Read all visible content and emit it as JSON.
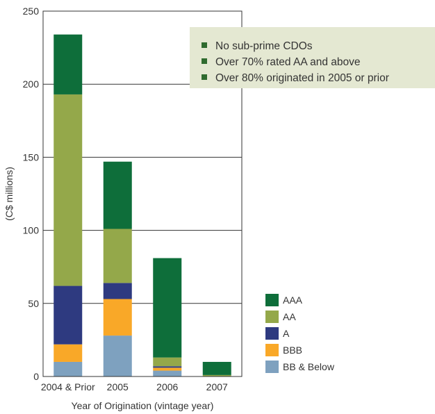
{
  "chart_data": {
    "type": "bar",
    "stacked": true,
    "categories": [
      "2004 & Prior",
      "2005",
      "2006",
      "2007"
    ],
    "series": [
      {
        "name": "BB & Below",
        "color": "#7ea1bf",
        "values": [
          10,
          28,
          4,
          0
        ]
      },
      {
        "name": "BBB",
        "color": "#f9a828",
        "values": [
          12,
          25,
          2,
          0
        ]
      },
      {
        "name": "A",
        "color": "#2e3a80",
        "values": [
          40,
          11,
          1,
          0
        ]
      },
      {
        "name": "AA",
        "color": "#94a84a",
        "values": [
          131,
          37,
          6,
          1
        ]
      },
      {
        "name": "AAA",
        "color": "#0e6e3a",
        "values": [
          41,
          46,
          68,
          9
        ]
      }
    ],
    "title": "",
    "xlabel": "Year of Origination (vintage year)",
    "ylabel": "(C$ millions)",
    "ylim": [
      0,
      250
    ],
    "yticks": [
      0,
      50,
      100,
      150,
      200,
      250
    ],
    "grid": true,
    "legend_position": "bottom-right",
    "legend_order": [
      "AAA",
      "AA",
      "A",
      "BBB",
      "BB & Below"
    ]
  },
  "callout": {
    "background": "#e4e8d2",
    "bullet_color": "#2f6b2f",
    "items": [
      "No sub-prime CDOs",
      "Over 70% rated AA and above",
      "Over 80% originated in 2005 or prior"
    ]
  }
}
